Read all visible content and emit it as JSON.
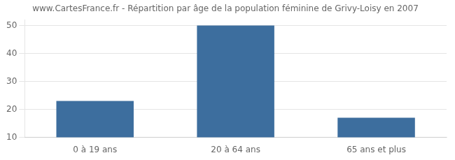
{
  "chart_data": {
    "type": "bar",
    "title": "www.CartesFrance.fr - Répartition par âge de la population féminine de Grivy-Loisy en 2007",
    "categories": [
      "0 à 19 ans",
      "20 à 64 ans",
      "65 ans et plus"
    ],
    "values": [
      23,
      50,
      17
    ],
    "color": "#3d6e9e",
    "ylim": [
      10,
      52
    ],
    "yticks": [
      10,
      20,
      30,
      40,
      50
    ],
    "grid": true
  }
}
